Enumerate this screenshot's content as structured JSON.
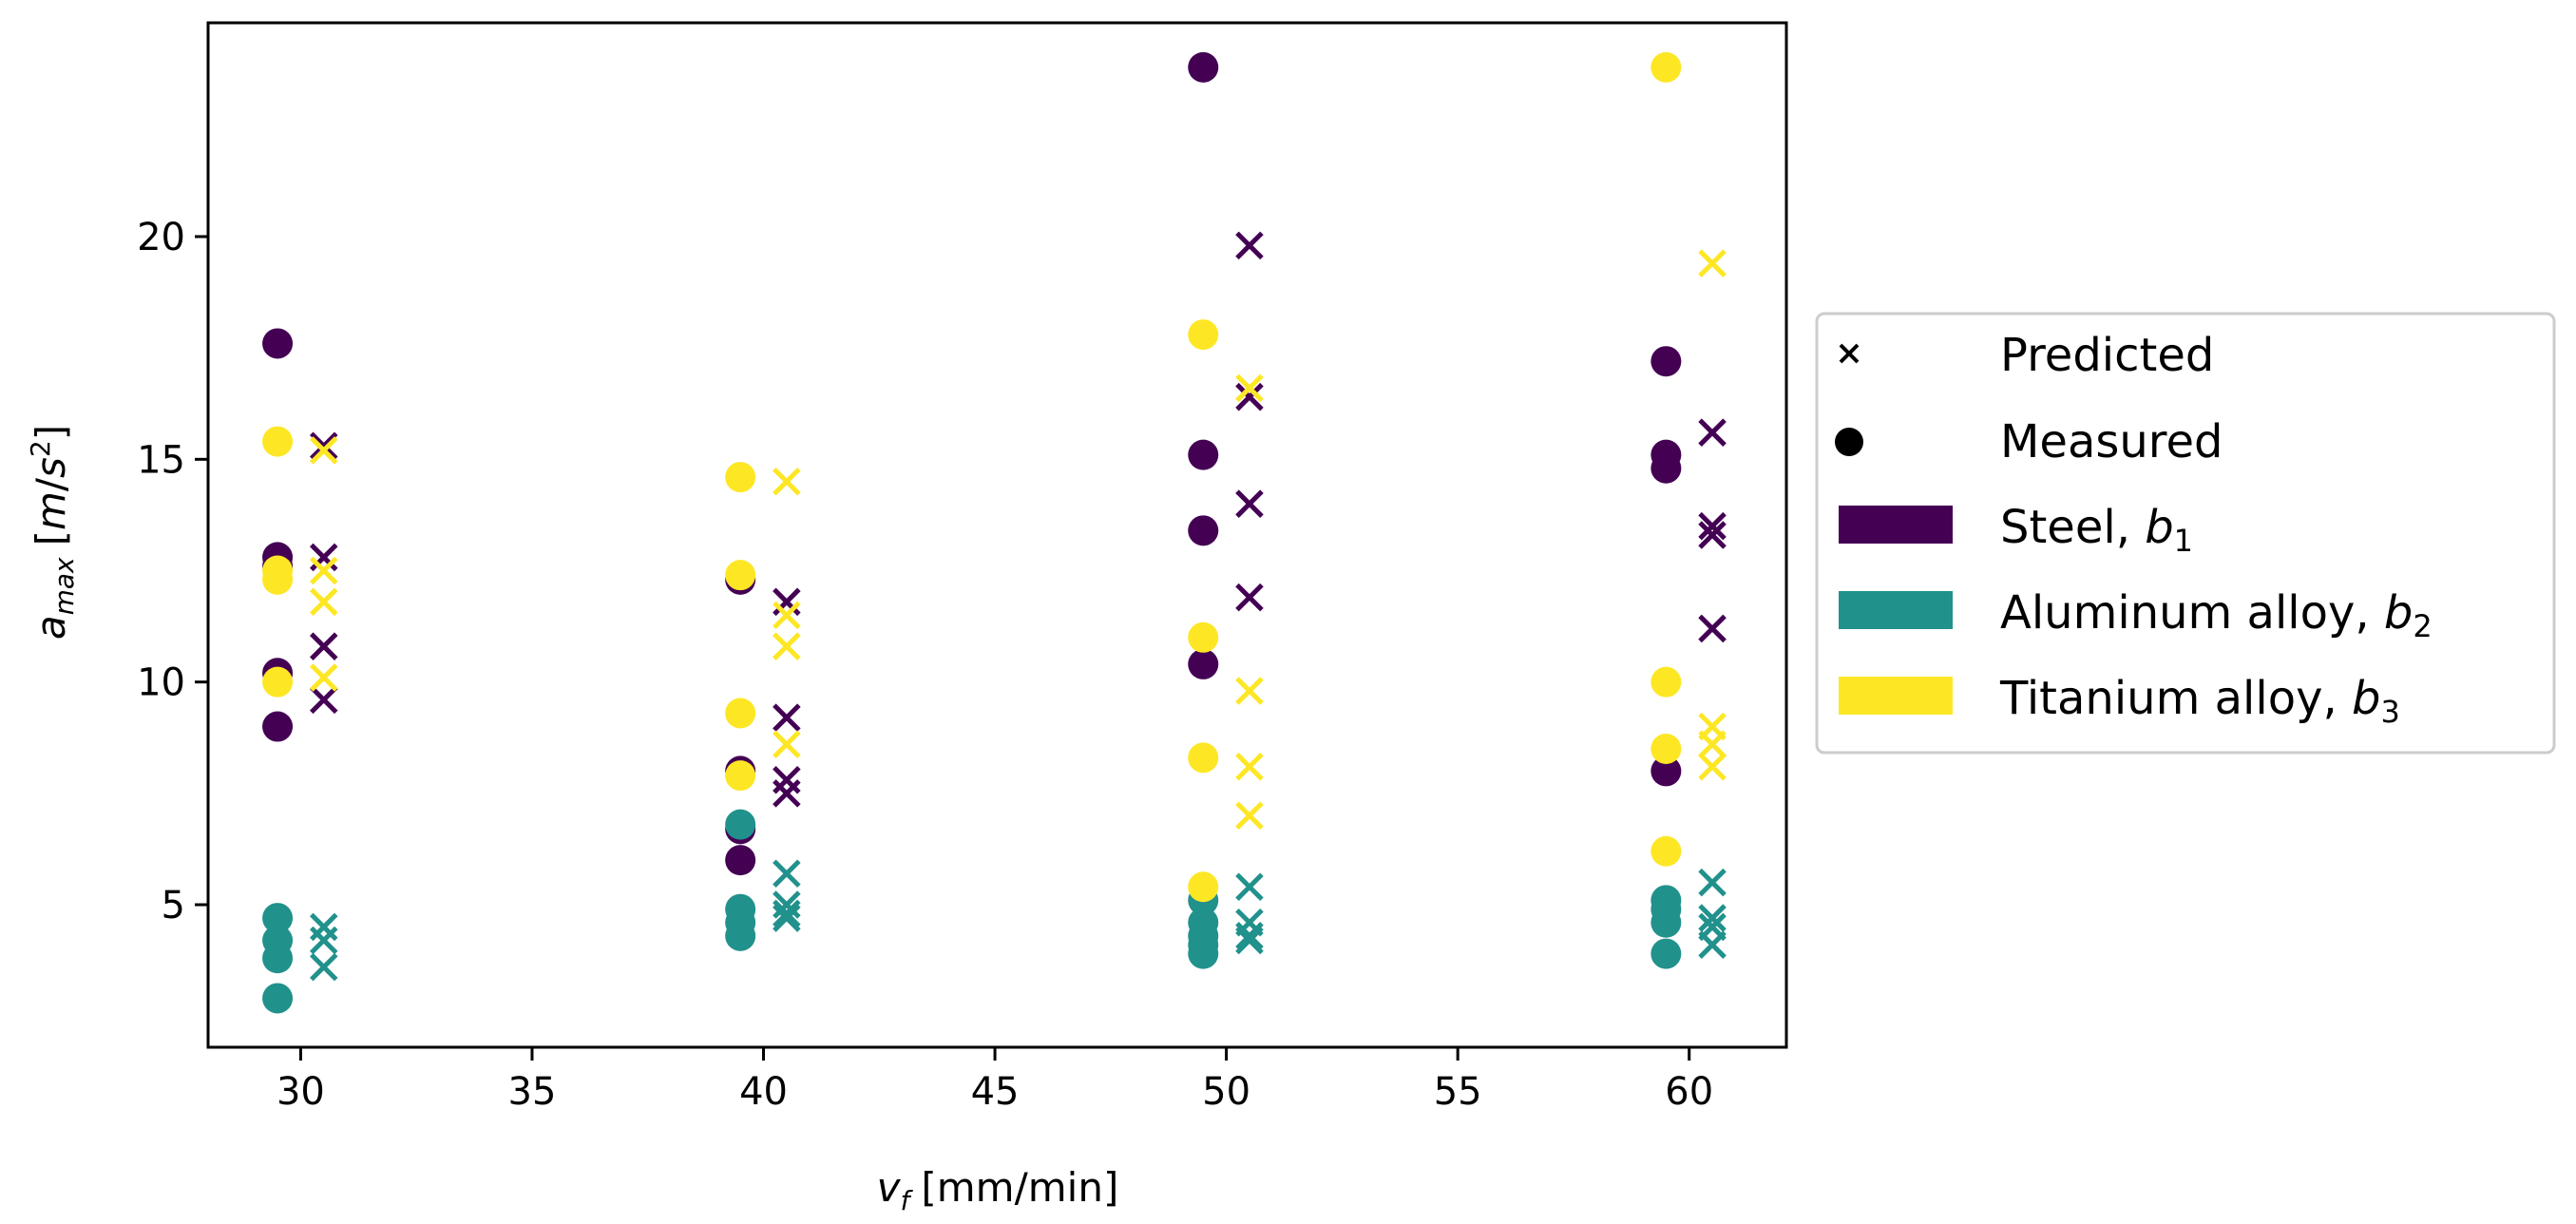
{
  "chart_data": {
    "type": "scatter",
    "title": "",
    "xlabel": {
      "base": "v",
      "sub": "f",
      "unit": "[mm/min]"
    },
    "ylabel": {
      "base": "a",
      "sub": "max",
      "unit_open": "[",
      "unit_m": "m",
      "unit_slash": "/",
      "unit_s": "s",
      "unit_sup": "2",
      "unit_close": "]"
    },
    "xlim": [
      28,
      62.1
    ],
    "ylim": [
      1.8,
      24.8
    ],
    "xticks": [
      30,
      35,
      40,
      45,
      50,
      55,
      60
    ],
    "yticks": [
      5,
      10,
      15,
      20
    ],
    "grid": false,
    "legend_position": "right",
    "colors": {
      "steel": "#440154",
      "aluminum": "#21918c",
      "titanium": "#fde725",
      "marker_key": "#000000"
    },
    "legend": [
      {
        "name": "Predicted",
        "symbol": "x"
      },
      {
        "name": "Measured",
        "symbol": "dot"
      },
      {
        "name": "Steel, ",
        "math": "b",
        "sub": "1",
        "symbol": "patch",
        "color_key": "steel"
      },
      {
        "name": "Aluminum alloy, ",
        "math": "b",
        "sub": "2",
        "symbol": "patch",
        "color_key": "aluminum"
      },
      {
        "name": "Titanium alloy, ",
        "math": "b",
        "sub": "3",
        "symbol": "patch",
        "color_key": "titanium"
      }
    ],
    "series": [
      {
        "name": "Steel measured",
        "color_key": "steel",
        "marker": "dot",
        "points": [
          [
            29.5,
            17.6
          ],
          [
            29.5,
            12.8
          ],
          [
            29.5,
            12.6
          ],
          [
            29.5,
            10.2
          ],
          [
            29.5,
            9.0
          ],
          [
            39.5,
            12.3
          ],
          [
            39.5,
            8.0
          ],
          [
            39.5,
            6.7
          ],
          [
            39.5,
            6.0
          ],
          [
            49.5,
            23.8
          ],
          [
            49.5,
            15.1
          ],
          [
            49.5,
            13.4
          ],
          [
            49.5,
            10.4
          ],
          [
            59.5,
            17.2
          ],
          [
            59.5,
            15.1
          ],
          [
            59.5,
            14.8
          ],
          [
            59.5,
            8.0
          ]
        ]
      },
      {
        "name": "Steel predicted",
        "color_key": "steel",
        "marker": "x",
        "points": [
          [
            30.5,
            15.3
          ],
          [
            30.5,
            12.8
          ],
          [
            30.5,
            10.8
          ],
          [
            30.5,
            9.6
          ],
          [
            40.5,
            11.8
          ],
          [
            40.5,
            9.2
          ],
          [
            40.5,
            7.8
          ],
          [
            40.5,
            7.5
          ],
          [
            50.5,
            19.8
          ],
          [
            50.5,
            16.4
          ],
          [
            50.5,
            14.0
          ],
          [
            50.5,
            11.9
          ],
          [
            60.5,
            15.6
          ],
          [
            60.5,
            13.5
          ],
          [
            60.5,
            13.3
          ],
          [
            60.5,
            11.2
          ]
        ]
      },
      {
        "name": "Aluminum alloy measured",
        "color_key": "aluminum",
        "marker": "dot",
        "points": [
          [
            29.5,
            4.7
          ],
          [
            29.5,
            4.2
          ],
          [
            29.5,
            3.8
          ],
          [
            29.5,
            2.9
          ],
          [
            39.5,
            6.8
          ],
          [
            39.5,
            4.9
          ],
          [
            39.5,
            4.6
          ],
          [
            39.5,
            4.3
          ],
          [
            49.5,
            5.1
          ],
          [
            49.5,
            4.6
          ],
          [
            49.5,
            4.3
          ],
          [
            49.5,
            4.1
          ],
          [
            49.5,
            3.9
          ],
          [
            59.5,
            5.1
          ],
          [
            59.5,
            4.9
          ],
          [
            59.5,
            4.6
          ],
          [
            59.5,
            3.9
          ]
        ]
      },
      {
        "name": "Aluminum alloy predicted",
        "color_key": "aluminum",
        "marker": "x",
        "points": [
          [
            30.5,
            4.5
          ],
          [
            30.5,
            4.2
          ],
          [
            30.5,
            3.6
          ],
          [
            40.5,
            5.7
          ],
          [
            40.5,
            5.0
          ],
          [
            40.5,
            4.8
          ],
          [
            40.5,
            4.7
          ],
          [
            50.5,
            5.4
          ],
          [
            50.5,
            4.6
          ],
          [
            50.5,
            4.3
          ],
          [
            50.5,
            4.2
          ],
          [
            60.5,
            5.5
          ],
          [
            60.5,
            4.7
          ],
          [
            60.5,
            4.5
          ],
          [
            60.5,
            4.1
          ]
        ]
      },
      {
        "name": "Titanium alloy measured",
        "color_key": "titanium",
        "marker": "dot",
        "points": [
          [
            29.5,
            15.4
          ],
          [
            29.5,
            12.5
          ],
          [
            29.5,
            12.3
          ],
          [
            29.5,
            10.0
          ],
          [
            39.5,
            14.6
          ],
          [
            39.5,
            12.4
          ],
          [
            39.5,
            9.3
          ],
          [
            39.5,
            7.9
          ],
          [
            49.5,
            17.8
          ],
          [
            49.5,
            11.0
          ],
          [
            49.5,
            8.3
          ],
          [
            49.5,
            5.4
          ],
          [
            59.5,
            23.8
          ],
          [
            59.5,
            10.0
          ],
          [
            59.5,
            8.5
          ],
          [
            59.5,
            6.2
          ]
        ]
      },
      {
        "name": "Titanium alloy predicted",
        "color_key": "titanium",
        "marker": "x",
        "points": [
          [
            30.5,
            15.2
          ],
          [
            30.5,
            12.5
          ],
          [
            30.5,
            11.8
          ],
          [
            30.5,
            10.1
          ],
          [
            40.5,
            14.5
          ],
          [
            40.5,
            11.5
          ],
          [
            40.5,
            10.8
          ],
          [
            40.5,
            8.6
          ],
          [
            50.5,
            16.6
          ],
          [
            50.5,
            9.8
          ],
          [
            50.5,
            8.1
          ],
          [
            50.5,
            7.0
          ],
          [
            60.5,
            19.4
          ],
          [
            60.5,
            9.0
          ],
          [
            60.5,
            8.6
          ],
          [
            60.5,
            8.1
          ]
        ]
      }
    ]
  }
}
